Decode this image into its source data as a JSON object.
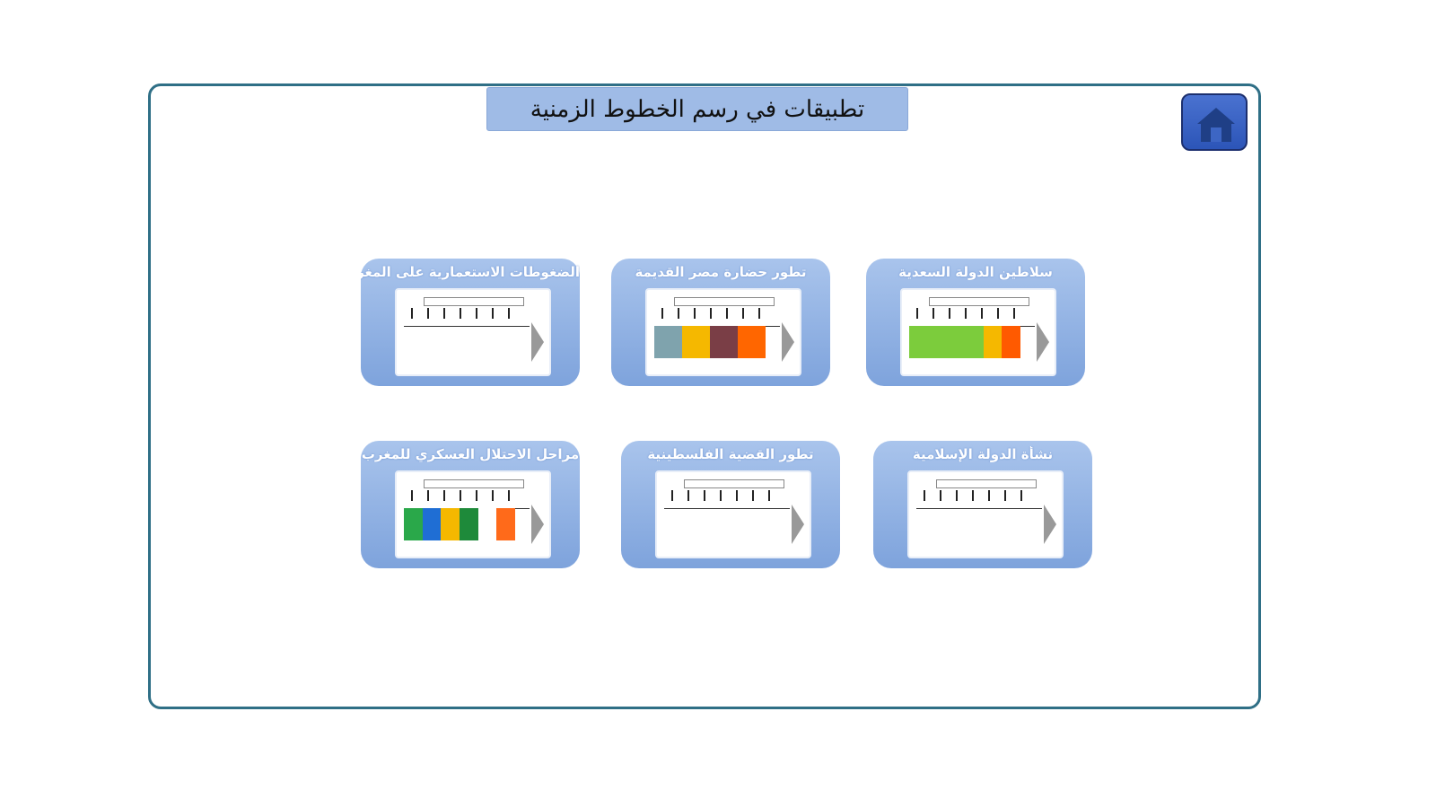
{
  "header": {
    "title": "تطبيقات في رسم الخطوط الزمنية",
    "home_icon": "home-icon"
  },
  "cards": [
    {
      "label": "الضغوطات الاستعمارية على المغرب",
      "segments": []
    },
    {
      "label": "تطور حضارة مصر القديمة",
      "segments": [
        "#7fa3ad",
        "#f5b800",
        "#7a3e46",
        "#ff6600"
      ]
    },
    {
      "label": "سلاطين الدولة السعدية",
      "segments": [
        "#7ccc3c",
        "#7ccc3c",
        "#7ccc3c",
        "#7ccc3c",
        "#f5b800",
        "#ff5a00"
      ]
    },
    {
      "label": "مراحل الاحتلال العسكري للمغرب",
      "segments": [
        "#2aa84a",
        "#1f6ed4",
        "#f5b800",
        "#1e8a3a",
        "#ffffff",
        "#ff6a1a"
      ]
    },
    {
      "label": "تطور القضية الفلسطينية",
      "segments": []
    },
    {
      "label": "نشأة الدولة الإسلامية",
      "segments": []
    }
  ]
}
